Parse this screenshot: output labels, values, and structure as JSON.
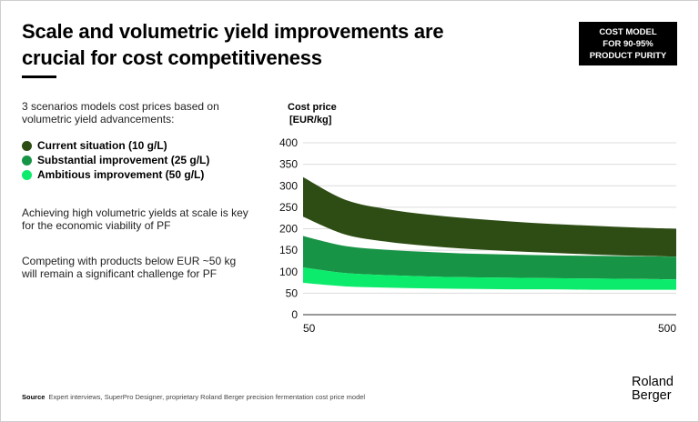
{
  "header": {
    "title_line1": "Scale and volumetric yield improvements are",
    "title_line2": "crucial for cost competitiveness",
    "badge_line1": "COST MODEL",
    "badge_line2": "FOR 90-95%",
    "badge_line3": "PRODUCT PURITY"
  },
  "sidebar": {
    "intro": "3 scenarios models cost prices based on volumetric yield advancements:",
    "legend": [
      {
        "label": "Current situation (10 g/L)",
        "color": "#2d4d14"
      },
      {
        "label": "Substantial improvement (25 g/L)",
        "color": "#189446"
      },
      {
        "label": "Ambitious improvement (50 g/L)",
        "color": "#0deb6c"
      }
    ],
    "para1": "Achieving high volumetric yields at scale is key for the economic viability of PF",
    "para2": "Competing with products below EUR ~50 kg will remain a significant challenge for PF"
  },
  "footer": {
    "source_label": "Source",
    "source_text": "Expert interviews, SuperPro Designer, proprietary Roland Berger precision fermentation cost price model",
    "logo_line1": "Roland",
    "logo_line2": "Berger"
  },
  "chart_data": {
    "type": "area",
    "ylabel_line1": "Cost price",
    "ylabel_line2": "[EUR/kg]",
    "ylim": [
      0,
      400
    ],
    "yticks": [
      "400",
      "350",
      "300",
      "250",
      "200",
      "150",
      "100",
      "50",
      "0"
    ],
    "ytick_values": [
      400,
      350,
      300,
      250,
      200,
      150,
      100,
      50,
      0
    ],
    "xlim": [
      50,
      500
    ],
    "xticks": [
      "50",
      "500"
    ],
    "grid": true,
    "x": [
      50,
      100,
      150,
      200,
      250,
      300,
      350,
      400,
      450,
      500
    ],
    "series": [
      {
        "name": "Current situation (10 g/L)",
        "color": "#2d4d14",
        "upper": [
          320,
          268,
          246,
          233,
          224,
          217,
          211,
          207,
          203,
          200
        ],
        "lower": [
          228,
          187,
          170,
          160,
          153,
          148,
          144,
          140,
          137,
          135
        ]
      },
      {
        "name": "Substantial improvement (25 g/L)",
        "color": "#189446",
        "upper": [
          183,
          160,
          151,
          146,
          142,
          140,
          138,
          137,
          136,
          135
        ],
        "lower": [
          110,
          97,
          92,
          89,
          87,
          86,
          85,
          84,
          83,
          82
        ]
      },
      {
        "name": "Ambitious improvement (50 g/L)",
        "color": "#0deb6c",
        "upper": [
          110,
          97,
          92,
          89,
          87,
          86,
          85,
          84,
          83,
          82
        ],
        "lower": [
          74,
          66,
          63,
          61,
          60,
          59,
          59,
          58,
          58,
          58
        ]
      }
    ]
  }
}
